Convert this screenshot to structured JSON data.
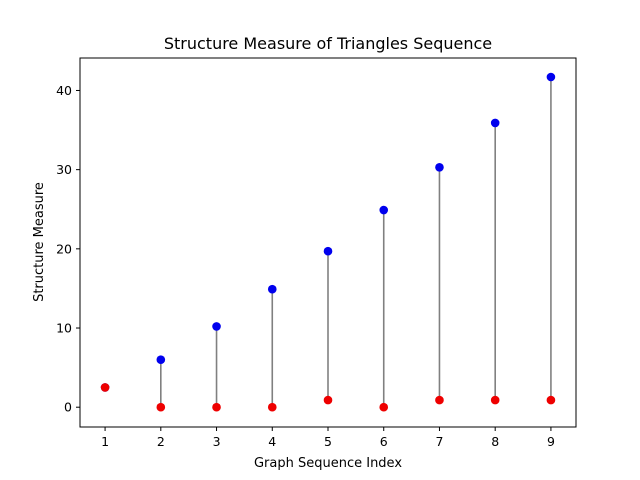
{
  "chart_data": {
    "type": "scatter",
    "title": "Structure Measure of Triangles Sequence",
    "xlabel": "Graph Sequence Index",
    "ylabel": "Structure Measure",
    "xlim": [
      0.55,
      9.45
    ],
    "ylim": [
      -2.5,
      44.1
    ],
    "xticks": [
      1,
      2,
      3,
      4,
      5,
      6,
      7,
      8,
      9
    ],
    "yticks": [
      0,
      10,
      20,
      30,
      40
    ],
    "grid": false,
    "colors": {
      "upper": "#0000ee",
      "lower": "#ee0000",
      "connector": "#808080"
    },
    "series": [
      {
        "values": [
          2.5,
          6.0,
          10.2,
          14.9,
          19.7,
          24.9,
          30.3,
          35.9,
          41.7
        ]
      },
      {
        "values": [
          2.5,
          0.0,
          0.0,
          0.0,
          0.9,
          0.0,
          0.9,
          0.9,
          0.9
        ]
      }
    ],
    "x": [
      1,
      2,
      3,
      4,
      5,
      6,
      7,
      8,
      9
    ]
  }
}
